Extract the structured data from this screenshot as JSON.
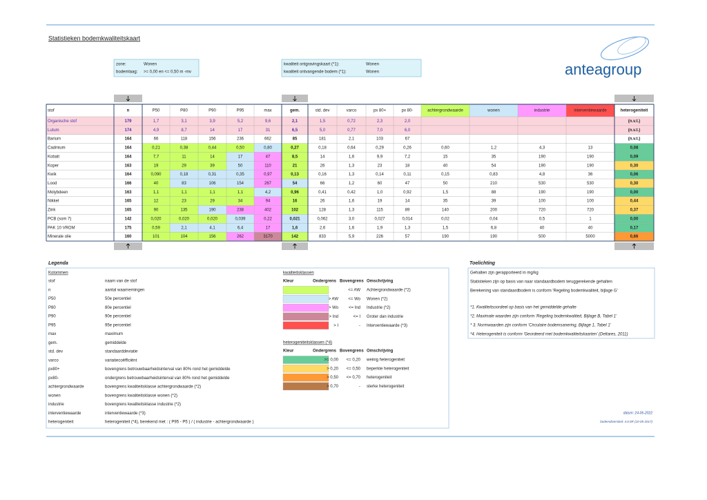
{
  "header": {
    "title": "Statistieken bodemkwaliteitskaart",
    "logo": "anteagroup"
  },
  "info": [
    {
      "label": "zone:",
      "value": "Wonen"
    },
    {
      "label": "bodemlaag:",
      "value": ">= 0,00 en <= 0,50 m -mv"
    }
  ],
  "info2": [
    {
      "label": "kwaliteit ontgravingskaart (*1):",
      "value": "Wonen"
    },
    {
      "label": "kwaliteit ontvangende bodem (*1):",
      "value": "Wonen"
    }
  ],
  "table": {
    "columns": [
      "stof",
      "n",
      "P50",
      "P80",
      "P90",
      "P95",
      "max",
      "gem.",
      "std. dev",
      "varco",
      "px 80+",
      "px 80-",
      "achtergrondwaarde",
      "wonen",
      "industrie",
      "interventiewaarde",
      "heterogeniteit"
    ],
    "rows": [
      [
        "Organische stof",
        "179",
        "1,7",
        "3,1",
        "3,9",
        "5,2",
        "9,6",
        "2,1",
        "1,5",
        "0,72",
        "2,3",
        "2,0",
        null,
        null,
        null,
        null,
        "(n.v.t.)"
      ],
      [
        "Lutum",
        "174",
        "4,9",
        "8,7",
        "14",
        "17",
        "31",
        "6,5",
        "5,0",
        "0,77",
        "7,0",
        "6,0",
        null,
        null,
        null,
        null,
        "(n.v.t.)"
      ],
      [
        "Barium",
        "164",
        "66",
        "118",
        "156",
        "236",
        "662",
        "85",
        "181",
        "2,1",
        "103",
        "67",
        null,
        null,
        null,
        null,
        "(n.v.t.)"
      ],
      [
        "Cadmium",
        "164",
        "0,21",
        "0,38",
        "0,44",
        "0,50",
        "0,80",
        "0,27",
        "0,18",
        "0,64",
        "0,29",
        "0,26",
        "0,60",
        "1,2",
        "4,3",
        "13",
        "0,08"
      ],
      [
        "Kobalt",
        "164",
        "7,7",
        "11",
        "14",
        "17",
        "47",
        "8,5",
        "14",
        "1,6",
        "9,9",
        "7,2",
        "15",
        "35",
        "190",
        "190",
        "0,09"
      ],
      [
        "Koper",
        "163",
        "19",
        "29",
        "39",
        "50",
        "110",
        "21",
        "26",
        "1,3",
        "23",
        "18",
        "40",
        "54",
        "190",
        "190",
        "0,30"
      ],
      [
        "Kwik",
        "164",
        "0,090",
        "0,18",
        "0,31",
        "0,35",
        "0,97",
        "0,13",
        "0,16",
        "1,3",
        "0,14",
        "0,11",
        "0,15",
        "0,83",
        "4,8",
        "36",
        "0,06"
      ],
      [
        "Lood",
        "166",
        "40",
        "83",
        "106",
        "154",
        "267",
        "54",
        "66",
        "1,2",
        "60",
        "47",
        "50",
        "210",
        "530",
        "530",
        "0,30"
      ],
      [
        "Molybdeen",
        "163",
        "1,1",
        "1,1",
        "1,1",
        "1,1",
        "4,2",
        "0,96",
        "0,41",
        "0,42",
        "1,0",
        "0,92",
        "1,5",
        "88",
        "190",
        "190",
        "0,00"
      ],
      [
        "Nikkel",
        "165",
        "12",
        "23",
        "29",
        "34",
        "94",
        "16",
        "26",
        "1,6",
        "19",
        "14",
        "35",
        "39",
        "100",
        "100",
        "0,44"
      ],
      [
        "Zink",
        "165",
        "90",
        "135",
        "190",
        "238",
        "402",
        "102",
        "128",
        "1,3",
        "115",
        "89",
        "140",
        "200",
        "720",
        "720",
        "0,37"
      ],
      [
        "PCB (som 7)",
        "142",
        "0,020",
        "0,020",
        "0,020",
        "0,039",
        "0,22",
        "0,021",
        "0,062",
        "3,0",
        "0,027",
        "0,014",
        "0,02",
        "0,04",
        "0,5",
        "1",
        "0,00"
      ],
      [
        "PAK 10 VROM",
        "175",
        "0,59",
        "2,1",
        "4,1",
        "6,4",
        "17",
        "1,6",
        "2,6",
        "1,6",
        "1,9",
        "1,3",
        "1,5",
        "6,8",
        "40",
        "40",
        "0,17"
      ],
      [
        "Minerale olie",
        "160",
        "101",
        "104",
        "156",
        "262",
        "3170",
        "142",
        "833",
        "5,9",
        "226",
        "57",
        "190",
        "190",
        "500",
        "5000",
        "0,66"
      ]
    ]
  },
  "legend": {
    "title": "Legenda",
    "kolommen_title": "Kolommen",
    "kolommen": [
      [
        "stof",
        "naam van de stof"
      ],
      [
        "n",
        "aantal waarnemingen"
      ],
      [
        "P50",
        "50e percentiel"
      ],
      [
        "P80",
        "80e percentiel"
      ],
      [
        "P90",
        "90e percentiel"
      ],
      [
        "P95",
        "95e percentiel"
      ],
      [
        "max",
        "maximum"
      ],
      [
        "gem.",
        "gemiddelde"
      ],
      [
        "std. dev",
        "standaarddeviatie"
      ],
      [
        "varco",
        "variatiecoëfficiënt"
      ],
      [
        "px80+",
        "bovengrens betrouwbaarheidsinterval van 80% rond het gemiddelde"
      ],
      [
        "px80-",
        "ondergrens betrouwbaarheidsinterval van 80% rond het gemiddelde"
      ],
      [
        "achtergrondwaarde",
        "bovengrens kwaliteitsklasse achtergrondwaarde (*2)"
      ],
      [
        "wonen",
        "bovengrens kwaliteitsklasse wonen (*2)"
      ],
      [
        "industrie",
        "bovengrens kwaliteitsklasse industrie (*2)"
      ],
      [
        "interventiewaarde",
        "interventiewaarde (*3)"
      ],
      [
        "heterogeniteit",
        "heterogeniteit (*4), berekend met : ( P95 - P5 ) / ( industrie - achtergrondwaarde )"
      ]
    ],
    "kwaliteit_title": "kwaliteitsklassen",
    "kwaliteit_header": [
      "Kleur",
      "Ondergrens",
      "Bovengrens",
      "Omschrijving"
    ],
    "kwaliteit": [
      {
        "bovengrens": "<= AW",
        "omschrijving": "Achtergrondwaarde (*2)"
      },
      {
        "ondergrens": "> AW",
        "bovengrens": "<= Wo",
        "omschrijving": "Wonen (*2)"
      },
      {
        "ondergrens": "> Wo",
        "bovengrens": "<= Ind",
        "omschrijving": "Industrie (*2)"
      },
      {
        "ondergrens": "> Ind",
        "bovengrens": "<= I",
        "omschrijving": "Groter dan industrie"
      },
      {
        "ondergrens": "> I",
        "bovengrens": "-",
        "omschrijving": "Interventiewaarde (*3)"
      }
    ],
    "heterogeniteit_title": "heterogeniteitsklassen (*4)",
    "heterogeniteit_header": [
      "Kleur",
      "Ondergrens",
      "Bovengrens",
      "Omschrijving"
    ],
    "heterogeniteit": [
      {
        "ondergrens": ">= 0,00",
        "bovengrens": "<= 0,20",
        "omschrijving": "weinig heterogeniteit"
      },
      {
        "ondergrens": "> 0,20",
        "bovengrens": "<= 0,50",
        "omschrijving": "beperkte heterogeniteit"
      },
      {
        "ondergrens": "> 0,50",
        "bovengrens": "<= 0,70",
        "omschrijving": "heterogeniteit"
      },
      {
        "ondergrens": "> 0,70",
        "bovengrens": "-",
        "omschrijving": "sterke heterogeniteit"
      }
    ]
  },
  "toelichting": {
    "title": "Toelichting",
    "lines": [
      "Gehalten zijn gerapporteerd in mg/kg",
      "Statistieken zijn op basis van naar standaardbodem teruggerekende gehalten",
      "Berekening van standaardbodem is conform 'Regeling bodemkwaliteit, bijlage G'",
      "*1. Kwaliteitsoordeel op basis van het gemiddelde gehalte",
      "*2. Maximale waarden zijn conform 'Regeling bodemkwaliteit, Bijlage B, Tabel 1'",
      "* 3. Normwaarden zijn conform 'Circulaire bodemsanering, Bijlage 1, Tabel 1'",
      "*4. Heterogeniteit is conform 'Geordeerd met bodemkwaliteitskaarten' (Deltares, 2011)"
    ]
  },
  "footer": {
    "datum": "datum: 24-06-2022",
    "versie": "bodemdiversiteit: 4.0.0R (10-05-2017)"
  }
}
